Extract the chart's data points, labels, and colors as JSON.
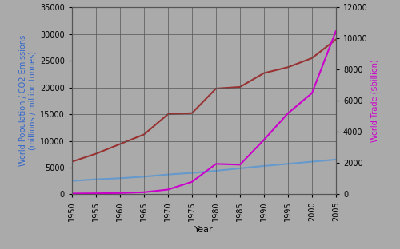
{
  "years": [
    1950,
    1955,
    1960,
    1965,
    1970,
    1975,
    1980,
    1985,
    1990,
    1995,
    2000,
    2005
  ],
  "population": [
    2500,
    2800,
    3000,
    3300,
    3700,
    4000,
    4400,
    4850,
    5300,
    5700,
    6100,
    6500
  ],
  "co2": [
    6100,
    7600,
    9400,
    11200,
    15000,
    15200,
    19800,
    20100,
    22700,
    23800,
    25500,
    29000
  ],
  "trade": [
    50,
    60,
    80,
    130,
    300,
    800,
    1950,
    1900,
    3500,
    5200,
    6500,
    10500
  ],
  "pop_color": "#6699cc",
  "co2_color": "#993333",
  "trade_color": "#cc00cc",
  "bg_color": "#aaaaaa",
  "left_label": "World Population / CO2 Emissions\n(millions / million tonnes)",
  "right_label": "World Trade ($billion)",
  "xlabel": "Year",
  "left_ylim": [
    0,
    35000
  ],
  "right_ylim": [
    0,
    12000
  ],
  "left_yticks": [
    0,
    5000,
    10000,
    15000,
    20000,
    25000,
    30000,
    35000
  ],
  "right_yticks": [
    0,
    2000,
    4000,
    6000,
    8000,
    10000,
    12000
  ],
  "xticks": [
    1950,
    1955,
    1960,
    1965,
    1970,
    1975,
    1980,
    1985,
    1990,
    1995,
    2000,
    2005
  ],
  "left_label_color": "#3366cc",
  "right_label_color": "#cc00cc",
  "grid_color": "#555555",
  "line_width": 1.5,
  "tick_fontsize": 7,
  "label_fontsize": 7,
  "xlabel_fontsize": 8
}
